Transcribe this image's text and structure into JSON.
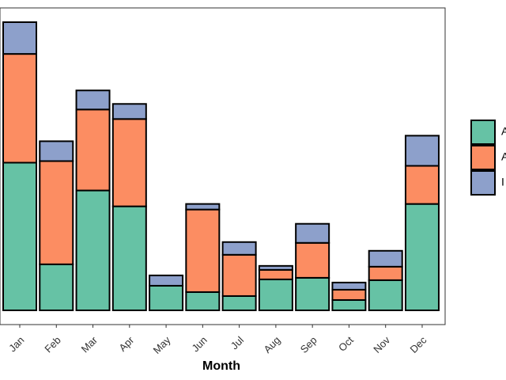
{
  "chart_data": {
    "type": "bar",
    "stacked": true,
    "categories": [
      "Jan",
      "Feb",
      "Mar",
      "Apr",
      "May",
      "Jun",
      "Jul",
      "Aug",
      "Sep",
      "Oct",
      "Nov",
      "Dec"
    ],
    "series": [
      {
        "color": "#66c2a5",
        "values": [
          186,
          58,
          151,
          131,
          31,
          23,
          18,
          39,
          41,
          13,
          38,
          134
        ]
      },
      {
        "color": "#fc8d62",
        "values": [
          137,
          130,
          102,
          110,
          0,
          104,
          52,
          12,
          44,
          13,
          17,
          48
        ]
      },
      {
        "color": "#8da0cb",
        "values": [
          40,
          25,
          24,
          19,
          13,
          7,
          16,
          5,
          24,
          9,
          20,
          38
        ]
      }
    ],
    "xlabel": "Month",
    "ylabel": "",
    "ylim": [
      0,
      363
    ],
    "grid": false,
    "legend": {
      "position": "right",
      "labels": [
        "A",
        "A",
        "I"
      ]
    }
  }
}
